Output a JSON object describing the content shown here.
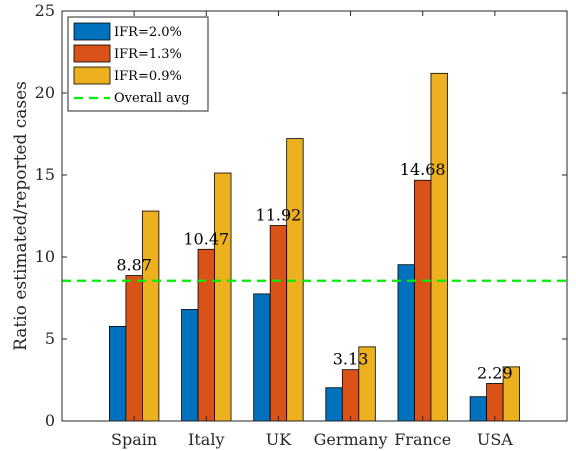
{
  "chart_data": {
    "type": "bar",
    "ylabel": "Ratio estimated/reported cases",
    "xlabel": "",
    "ylim": [
      0,
      25
    ],
    "yticks": [
      0,
      5,
      10,
      15,
      20,
      25
    ],
    "grid": false,
    "legend_position": "top-left",
    "categories": [
      "Spain",
      "Italy",
      "UK",
      "Germany",
      "France",
      "USA"
    ],
    "series": [
      {
        "name": "IFR=2.0%",
        "color": "#0072BD",
        "values": [
          5.77,
          6.8,
          7.75,
          2.03,
          9.53,
          1.48
        ]
      },
      {
        "name": "IFR=1.3%",
        "color": "#D95319",
        "values": [
          8.87,
          10.47,
          11.92,
          3.13,
          14.68,
          2.29
        ]
      },
      {
        "name": "IFR=0.9%",
        "color": "#EDB120",
        "values": [
          12.8,
          15.12,
          17.22,
          4.52,
          21.2,
          3.3
        ]
      }
    ],
    "data_labels": [
      {
        "category": "Spain",
        "text": "8.87"
      },
      {
        "category": "Italy",
        "text": "10.47"
      },
      {
        "category": "UK",
        "text": "11.92"
      },
      {
        "category": "Germany",
        "text": "3.13"
      },
      {
        "category": "France",
        "text": "14.68"
      },
      {
        "category": "USA",
        "text": "2.29"
      }
    ],
    "reference_line": {
      "name": "Overall avg",
      "value": 8.55,
      "color": "#00EE00",
      "style": "dashed"
    }
  }
}
